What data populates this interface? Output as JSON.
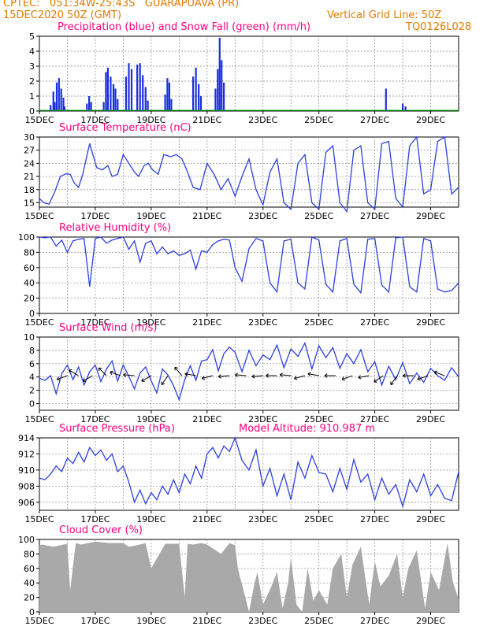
{
  "header": {
    "line1_left": "CPTEC:   051:34W-25:43S   GUARAPUAVA (PR)",
    "line2_left": "15DEC2020 50Z (GMT)",
    "line2_right": "Vertical Grid Line: 50Z",
    "line3_right": "TQ0126L028"
  },
  "colors": {
    "header_text": "#e07b00",
    "panel_title": "#ff0080",
    "series_line": "#2c3fe0",
    "precip_bar": "#1a2fe0",
    "snow_bar": "#00a000",
    "cloud_fill": "#a9a9a9"
  },
  "chart_data": [
    {
      "type": "bar",
      "title": "Precipitation (blue) and Snow Fall (green) (mm/h)",
      "x_tick_labels": [
        "15DEC",
        "17DEC",
        "19DEC",
        "21DEC",
        "23DEC",
        "25DEC",
        "27DEC",
        "29DEC"
      ],
      "ylim": [
        0,
        5
      ],
      "y_ticks": [
        0,
        1,
        2,
        3,
        4,
        5
      ],
      "series": [
        {
          "name": "Precipitation",
          "x_day": [
            0.4,
            0.5,
            0.55,
            0.62,
            0.7,
            0.78,
            0.86,
            0.9,
            1.7,
            1.78,
            1.85,
            2.3,
            2.38,
            2.45,
            2.55,
            2.65,
            2.72,
            2.8,
            3.1,
            3.2,
            3.3,
            3.5,
            3.6,
            3.7,
            3.8,
            3.88,
            4.5,
            4.58,
            4.65,
            4.72,
            5.5,
            5.6,
            5.7,
            5.78,
            6.3,
            6.38,
            6.45,
            6.52,
            6.6,
            12.4,
            13.0,
            13.1
          ],
          "values": [
            0.4,
            1.3,
            0.6,
            1.9,
            2.2,
            1.5,
            0.9,
            0.3,
            0.5,
            1.0,
            0.6,
            0.6,
            2.6,
            2.9,
            2.3,
            1.8,
            1.5,
            0.8,
            2.3,
            3.2,
            2.8,
            3.1,
            3.2,
            2.4,
            1.6,
            0.7,
            1.1,
            2.2,
            1.9,
            0.8,
            2.3,
            2.9,
            1.8,
            1.0,
            1.5,
            2.8,
            4.9,
            3.4,
            1.9,
            1.5,
            0.5,
            0.3
          ]
        },
        {
          "name": "Snow Fall",
          "x_day": [],
          "values": []
        }
      ]
    },
    {
      "type": "line",
      "title": "Surface Temperature (nC)",
      "x_tick_labels": [
        "15DEC",
        "17DEC",
        "19DEC",
        "21DEC",
        "23DEC",
        "25DEC",
        "27DEC",
        "29DEC"
      ],
      "ylim": [
        14,
        30
      ],
      "y_ticks": [
        15,
        18,
        21,
        24,
        27,
        30
      ],
      "series": [
        {
          "x_day": [
            0,
            0.15,
            0.35,
            0.55,
            0.75,
            0.95,
            1.1,
            1.25,
            1.4,
            1.55,
            1.8,
            2.05,
            2.25,
            2.45,
            2.6,
            2.8,
            3.0,
            3.2,
            3.4,
            3.55,
            3.75,
            3.9,
            4.05,
            4.25,
            4.45,
            4.7,
            4.9,
            5.1,
            5.3,
            5.5,
            5.75,
            6.0,
            6.25,
            6.5,
            6.75,
            7.0,
            7.25,
            7.5,
            7.75,
            8.0,
            8.25,
            8.5,
            8.75,
            9.0,
            9.25,
            9.5,
            9.75,
            10.0,
            10.25,
            10.5,
            10.75,
            11.0,
            11.25,
            11.5,
            11.75,
            12.0,
            12.25,
            12.5,
            12.75,
            13.0,
            13.25,
            13.5,
            13.75,
            14.0,
            14.25,
            14.5,
            14.75,
            15.0
          ],
          "values": [
            16,
            15,
            14.7,
            17.5,
            21,
            21.6,
            21.5,
            19.5,
            18.5,
            21.5,
            28.5,
            23,
            22.5,
            23.5,
            21,
            21.5,
            26,
            24,
            22,
            21,
            23.5,
            24,
            22.5,
            21.5,
            26,
            25.5,
            26,
            25,
            22,
            18.5,
            18,
            24,
            21.5,
            18,
            20.5,
            16.5,
            21,
            25,
            18,
            14.5,
            22,
            25,
            15,
            13.5,
            24,
            26,
            15,
            13.5,
            26.5,
            28,
            15,
            13,
            27,
            28,
            15,
            13.5,
            28.5,
            29,
            16,
            14,
            28,
            30,
            17,
            18,
            29,
            30,
            17,
            18.5
          ]
        }
      ]
    },
    {
      "type": "line",
      "title": "Relative Humidity (%)",
      "x_tick_labels": [
        "15DEC",
        "17DEC",
        "19DEC",
        "21DEC",
        "23DEC",
        "25DEC",
        "27DEC",
        "29DEC"
      ],
      "ylim": [
        0,
        100
      ],
      "y_ticks": [
        0,
        20,
        40,
        60,
        80,
        100
      ],
      "series": [
        {
          "x_day": [
            0,
            0.2,
            0.4,
            0.6,
            0.8,
            1.0,
            1.2,
            1.4,
            1.6,
            1.8,
            2.0,
            2.2,
            2.4,
            2.6,
            2.8,
            3.0,
            3.2,
            3.4,
            3.6,
            3.8,
            4.0,
            4.2,
            4.4,
            4.6,
            4.8,
            5.0,
            5.2,
            5.4,
            5.6,
            5.8,
            6.0,
            6.2,
            6.4,
            6.6,
            6.8,
            7.0,
            7.25,
            7.5,
            7.75,
            8.0,
            8.25,
            8.5,
            8.75,
            9.0,
            9.25,
            9.5,
            9.75,
            10.0,
            10.25,
            10.5,
            10.75,
            11.0,
            11.25,
            11.5,
            11.75,
            12.0,
            12.25,
            12.5,
            12.75,
            13.0,
            13.25,
            13.5,
            13.75,
            14.0,
            14.25,
            14.5,
            14.75,
            15.0
          ],
          "values": [
            100,
            99,
            100,
            88,
            96,
            80,
            95,
            97,
            98,
            35,
            98,
            100,
            92,
            96,
            98,
            100,
            84,
            95,
            67,
            92,
            95,
            78,
            87,
            78,
            82,
            76,
            78,
            83,
            58,
            82,
            80,
            90,
            95,
            97,
            96,
            60,
            42,
            85,
            98,
            95,
            40,
            28,
            95,
            97,
            40,
            32,
            100,
            96,
            38,
            28,
            95,
            98,
            38,
            27,
            97,
            98,
            37,
            28,
            99,
            100,
            35,
            28,
            98,
            95,
            32,
            28,
            30,
            40
          ]
        }
      ]
    },
    {
      "type": "line",
      "title": "Surface Wind (m/s)",
      "x_tick_labels": [
        "15DEC",
        "17DEC",
        "19DEC",
        "21DEC",
        "23DEC",
        "25DEC",
        "27DEC",
        "29DEC"
      ],
      "ylim": [
        -1,
        10
      ],
      "y_ticks": [
        0,
        2,
        4,
        6,
        8,
        10
      ],
      "series": [
        {
          "x_day": [
            0,
            0.2,
            0.4,
            0.6,
            0.8,
            1.0,
            1.2,
            1.4,
            1.6,
            1.8,
            2.0,
            2.2,
            2.4,
            2.6,
            2.8,
            3.0,
            3.2,
            3.4,
            3.6,
            3.8,
            4.0,
            4.2,
            4.4,
            4.6,
            4.8,
            5.0,
            5.2,
            5.4,
            5.6,
            5.8,
            6.0,
            6.2,
            6.4,
            6.6,
            6.8,
            7.0,
            7.25,
            7.5,
            7.75,
            8.0,
            8.25,
            8.5,
            8.75,
            9.0,
            9.25,
            9.5,
            9.75,
            10.0,
            10.25,
            10.5,
            10.75,
            11.0,
            11.25,
            11.5,
            11.75,
            12.0,
            12.25,
            12.5,
            12.75,
            13.0,
            13.25,
            13.5,
            13.75,
            14.0,
            14.25,
            14.5,
            14.75,
            15.0
          ],
          "values": [
            3.8,
            3.5,
            4.2,
            1.5,
            4.5,
            5.8,
            3.6,
            5.5,
            2.8,
            4.8,
            5.8,
            3.3,
            5.2,
            6.4,
            3.4,
            5.8,
            4.1,
            2.2,
            4.6,
            5.5,
            3.4,
            1.6,
            5.2,
            4.3,
            2.7,
            0.6,
            3.6,
            5.7,
            3.5,
            6.4,
            6.6,
            8.1,
            4.9,
            7.5,
            8.5,
            7.7,
            4.8,
            8.0,
            5.7,
            7.3,
            6.6,
            8.8,
            5.4,
            8.2,
            7.1,
            9.1,
            5.2,
            8.7,
            6.9,
            8.4,
            5.3,
            7.5,
            6.0,
            8.1,
            4.8,
            6.3,
            2.8,
            5.6,
            3.6,
            6.2,
            3.0,
            4.6,
            3.2,
            5.3,
            4.2,
            3.5,
            5.4,
            4.0
          ]
        }
      ],
      "wind_arrows": {
        "x_day": [
          1.0,
          1.4,
          1.9,
          2.4,
          2.9,
          3.4,
          4.0,
          4.6,
          5.1,
          5.6,
          6.2,
          6.8,
          7.4,
          8.0,
          8.5,
          9.0,
          9.5,
          10.0,
          10.6,
          11.2,
          11.8,
          12.3,
          12.8,
          13.4,
          13.9,
          14.5
        ],
        "angle_deg": [
          200,
          150,
          210,
          135,
          160,
          175,
          210,
          235,
          130,
          170,
          195,
          185,
          175,
          185,
          180,
          175,
          195,
          170,
          180,
          200,
          190,
          215,
          235,
          180,
          200,
          160
        ]
      }
    },
    {
      "type": "line",
      "title": "Surface Pressure (hPa)",
      "annotation": "Model Altitude: 910.987 m",
      "x_tick_labels": [
        "15DEC",
        "17DEC",
        "19DEC",
        "21DEC",
        "23DEC",
        "25DEC",
        "27DEC",
        "29DEC"
      ],
      "ylim": [
        905,
        914
      ],
      "y_ticks": [
        906,
        908,
        910,
        912,
        914
      ],
      "series": [
        {
          "x_day": [
            0,
            0.2,
            0.4,
            0.6,
            0.8,
            1.0,
            1.2,
            1.4,
            1.6,
            1.8,
            2.0,
            2.2,
            2.4,
            2.6,
            2.8,
            3.0,
            3.2,
            3.4,
            3.6,
            3.8,
            4.0,
            4.2,
            4.4,
            4.6,
            4.8,
            5.0,
            5.2,
            5.4,
            5.6,
            5.8,
            6.0,
            6.2,
            6.4,
            6.6,
            6.8,
            7.0,
            7.25,
            7.5,
            7.75,
            8.0,
            8.25,
            8.5,
            8.75,
            9.0,
            9.25,
            9.5,
            9.75,
            10.0,
            10.25,
            10.5,
            10.75,
            11.0,
            11.25,
            11.5,
            11.75,
            12.0,
            12.25,
            12.5,
            12.75,
            13.0,
            13.25,
            13.5,
            13.75,
            14.0,
            14.25,
            14.5,
            14.75,
            15.0
          ],
          "values": [
            909.0,
            908.8,
            909.5,
            910.5,
            909.8,
            911.5,
            910.8,
            912.2,
            911.0,
            912.8,
            911.8,
            912.5,
            911.2,
            912.0,
            909.8,
            910.5,
            908.5,
            906.0,
            907.5,
            905.8,
            907.2,
            906.3,
            908.0,
            907.0,
            908.8,
            907.2,
            909.5,
            908.3,
            910.5,
            909.0,
            912.0,
            912.8,
            911.5,
            913.0,
            912.3,
            914.0,
            911.2,
            910.0,
            912.5,
            908.0,
            910.2,
            906.8,
            909.5,
            906.3,
            911.0,
            909.0,
            911.8,
            909.7,
            909.5,
            907.3,
            910.2,
            907.6,
            911.3,
            908.5,
            909.5,
            906.3,
            909.0,
            907.0,
            908.2,
            905.5,
            908.8,
            907.3,
            909.5,
            906.8,
            908.2,
            906.5,
            906.2,
            909.8
          ]
        }
      ]
    },
    {
      "type": "area",
      "title": "Cloud Cover (%)",
      "x_tick_labels": [
        "15DEC",
        "17DEC",
        "19DEC",
        "21DEC",
        "23DEC",
        "25DEC",
        "27DEC",
        "29DEC"
      ],
      "ylim": [
        0,
        100
      ],
      "y_ticks": [
        0,
        20,
        40,
        60,
        80,
        100
      ],
      "series": [
        {
          "x_day": [
            0,
            0.1,
            0.5,
            1.0,
            1.1,
            1.3,
            1.5,
            2.0,
            2.5,
            3.0,
            3.2,
            3.5,
            3.8,
            4.0,
            4.5,
            5.0,
            5.2,
            5.3,
            5.5,
            5.8,
            6.0,
            6.5,
            6.8,
            7.0,
            7.1,
            7.3,
            7.5,
            7.7,
            7.8,
            8.0,
            8.3,
            8.5,
            8.7,
            8.9,
            9.0,
            9.2,
            9.4,
            9.6,
            9.8,
            10.0,
            10.3,
            10.5,
            10.8,
            11.0,
            11.2,
            11.5,
            11.8,
            12.0,
            12.2,
            12.5,
            12.8,
            13.0,
            13.2,
            13.5,
            13.8,
            14.0,
            14.3,
            14.6,
            14.8,
            15.0
          ],
          "values": [
            92,
            93,
            90,
            94,
            30,
            95,
            93,
            97,
            95,
            95,
            90,
            92,
            95,
            60,
            94,
            94,
            20,
            94,
            93,
            95,
            93,
            80,
            95,
            92,
            60,
            30,
            0,
            40,
            55,
            10,
            35,
            55,
            5,
            40,
            75,
            10,
            0,
            60,
            15,
            30,
            10,
            60,
            80,
            20,
            65,
            90,
            10,
            70,
            35,
            50,
            80,
            20,
            60,
            85,
            5,
            55,
            30,
            95,
            40,
            18
          ]
        }
      ]
    }
  ]
}
